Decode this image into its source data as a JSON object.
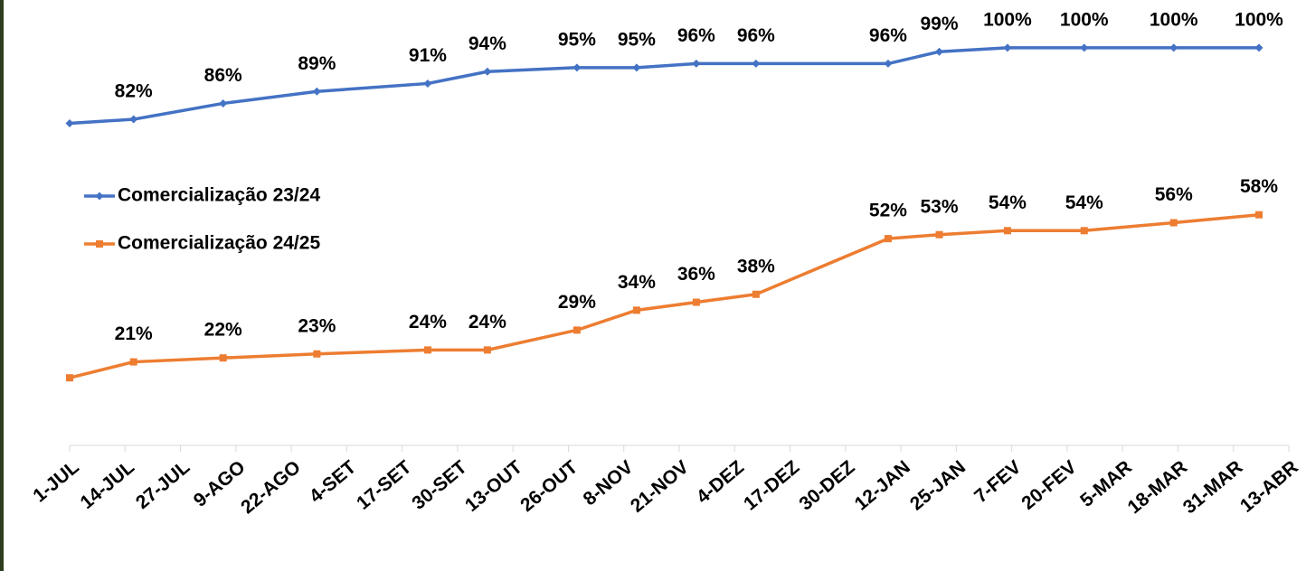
{
  "chart_data": {
    "type": "line",
    "x": [
      0,
      15,
      36,
      58,
      84,
      98,
      119,
      133,
      147,
      161,
      192,
      204,
      220,
      238,
      259,
      279
    ],
    "xlim": [
      0,
      286
    ],
    "xticks": [
      {
        "value": 0,
        "label": "1-JUL"
      },
      {
        "value": 13,
        "label": "14-JUL"
      },
      {
        "value": 26,
        "label": "27-JUL"
      },
      {
        "value": 39,
        "label": "9-AGO"
      },
      {
        "value": 52,
        "label": "22-AGO"
      },
      {
        "value": 65,
        "label": "4-SET"
      },
      {
        "value": 78,
        "label": "17-SET"
      },
      {
        "value": 91,
        "label": "30-SET"
      },
      {
        "value": 104,
        "label": "13-OUT"
      },
      {
        "value": 117,
        "label": "26-OUT"
      },
      {
        "value": 130,
        "label": "8-NOV"
      },
      {
        "value": 143,
        "label": "21-NOV"
      },
      {
        "value": 156,
        "label": "4-DEZ"
      },
      {
        "value": 169,
        "label": "17-DEZ"
      },
      {
        "value": 182,
        "label": "30-DEZ"
      },
      {
        "value": 195,
        "label": "12-JAN"
      },
      {
        "value": 208,
        "label": "25-JAN"
      },
      {
        "value": 221,
        "label": "7-FEV"
      },
      {
        "value": 234,
        "label": "20-FEV"
      },
      {
        "value": 247,
        "label": "5-MAR"
      },
      {
        "value": 260,
        "label": "18-MAR"
      },
      {
        "value": 273,
        "label": "31-MAR"
      },
      {
        "value": 286,
        "label": "13-ABR"
      }
    ],
    "ylim": [
      0,
      112
    ],
    "legend": "left",
    "series": [
      {
        "name": "Comercialização 23/24",
        "color": "#4472c4",
        "marker": "diamond",
        "values": [
          81,
          82,
          86,
          89,
          91,
          94,
          95,
          95,
          96,
          96,
          96,
          99,
          100,
          100,
          100,
          100
        ],
        "value_labels": [
          null,
          "82%",
          "86%",
          "89%",
          "91%",
          "94%",
          "95%",
          "95%",
          "96%",
          "96%",
          "96%",
          "99%",
          "100%",
          "100%",
          "100%",
          "100%"
        ]
      },
      {
        "name": "Comercialização 24/25",
        "color": "#ed7d31",
        "marker": "square",
        "values": [
          17,
          21,
          22,
          23,
          24,
          24,
          29,
          34,
          36,
          38,
          52,
          53,
          54,
          54,
          56,
          58
        ],
        "value_labels": [
          null,
          "21%",
          "22%",
          "23%",
          "24%",
          "24%",
          "29%",
          "34%",
          "36%",
          "38%",
          "52%",
          "53%",
          "54%",
          "54%",
          "56%",
          "58%"
        ]
      }
    ]
  }
}
